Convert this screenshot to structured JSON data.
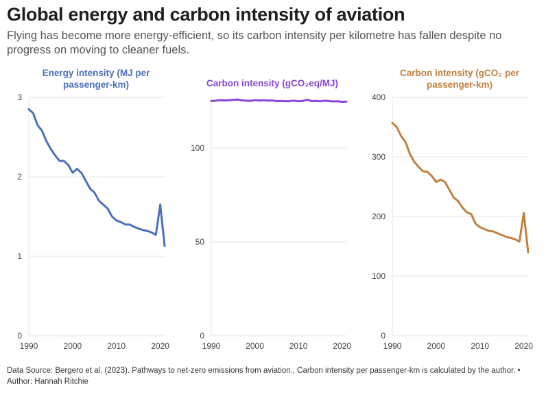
{
  "title": "Global energy and carbon intensity of aviation",
  "subtitle": "Flying has become more energy-efficient, so its carbon intensity per kilometre has fallen despite no progress on moving to cleaner fuels.",
  "footer": {
    "source": "Data Source: Bergero et al. (2023). Pathways to net-zero emissions from aviation., Carbon intensity per passenger-km is calculated by the author. • Author: Hannah Ritchie"
  },
  "chart_data": [
    {
      "type": "line",
      "title": "Energy intensity (MJ per passenger-km)",
      "title_lines": [
        "Energy intensity (MJ per",
        "passenger-km)"
      ],
      "color": "#4a6fbf",
      "xticks": [
        "1990",
        "2000",
        "2010",
        "2020"
      ],
      "yticks": [
        "0",
        "1",
        "2",
        "3"
      ],
      "ylim": [
        0,
        3
      ],
      "xlim": [
        1990,
        2021
      ],
      "grid": "horizontal",
      "x": [
        1990,
        1991,
        1992,
        1993,
        1994,
        1995,
        1996,
        1997,
        1998,
        1999,
        2000,
        2001,
        2002,
        2003,
        2004,
        2005,
        2006,
        2007,
        2008,
        2009,
        2010,
        2011,
        2012,
        2013,
        2014,
        2015,
        2016,
        2017,
        2018,
        2019,
        2020,
        2021
      ],
      "values": [
        2.85,
        2.8,
        2.65,
        2.58,
        2.45,
        2.35,
        2.27,
        2.2,
        2.2,
        2.15,
        2.05,
        2.1,
        2.05,
        1.95,
        1.85,
        1.8,
        1.7,
        1.65,
        1.6,
        1.5,
        1.45,
        1.43,
        1.4,
        1.4,
        1.37,
        1.35,
        1.33,
        1.32,
        1.3,
        1.27,
        1.65,
        1.13
      ]
    },
    {
      "type": "line",
      "title": "Carbon intensity (gCO₂eq/MJ)",
      "title_lines": [
        "Carbon intensity (gCO₂eq/MJ)"
      ],
      "color": "#8a45d8",
      "xticks": [
        "1990",
        "2000",
        "2010",
        "2020"
      ],
      "yticks": [
        "0",
        "50",
        "100"
      ],
      "ylim": [
        0,
        127
      ],
      "xlim": [
        1990,
        2021
      ],
      "grid": "horizontal",
      "x": [
        1990,
        1991,
        1992,
        1993,
        1994,
        1995,
        1996,
        1997,
        1998,
        1999,
        2000,
        2001,
        2002,
        2003,
        2004,
        2005,
        2006,
        2007,
        2008,
        2009,
        2010,
        2011,
        2012,
        2013,
        2014,
        2015,
        2016,
        2017,
        2018,
        2019,
        2020,
        2021
      ],
      "values": [
        125,
        125.2,
        125.5,
        125.3,
        125.4,
        125.6,
        125.8,
        125.4,
        125.2,
        125.1,
        125.5,
        125.3,
        125.4,
        125.2,
        125.3,
        125.0,
        125.1,
        124.9,
        125.0,
        125.2,
        124.9,
        125.1,
        125.7,
        125.0,
        125.1,
        124.9,
        125.2,
        125.0,
        124.8,
        124.9,
        124.6,
        124.7
      ]
    },
    {
      "type": "line",
      "title": "Carbon intensity (gCO₂ per passenger-km)",
      "title_lines": [
        "Carbon intensity (gCO₂ per",
        "passenger-km)"
      ],
      "color": "#c08040",
      "xticks": [
        "1990",
        "2000",
        "2010",
        "2020"
      ],
      "yticks": [
        "0",
        "100",
        "200",
        "300",
        "400"
      ],
      "ylim": [
        0,
        400
      ],
      "xlim": [
        1990,
        2021
      ],
      "grid": "horizontal",
      "x": [
        1990,
        1991,
        1992,
        1993,
        1994,
        1995,
        1996,
        1997,
        1998,
        1999,
        2000,
        2001,
        2002,
        2003,
        2004,
        2005,
        2006,
        2007,
        2008,
        2009,
        2010,
        2011,
        2012,
        2013,
        2014,
        2015,
        2016,
        2017,
        2018,
        2019,
        2020,
        2021
      ],
      "values": [
        357,
        350,
        335,
        325,
        305,
        292,
        283,
        276,
        275,
        268,
        258,
        262,
        258,
        245,
        232,
        226,
        215,
        207,
        204,
        188,
        182,
        179,
        176,
        175,
        172,
        169,
        166,
        164,
        162,
        158,
        206,
        140
      ]
    }
  ]
}
